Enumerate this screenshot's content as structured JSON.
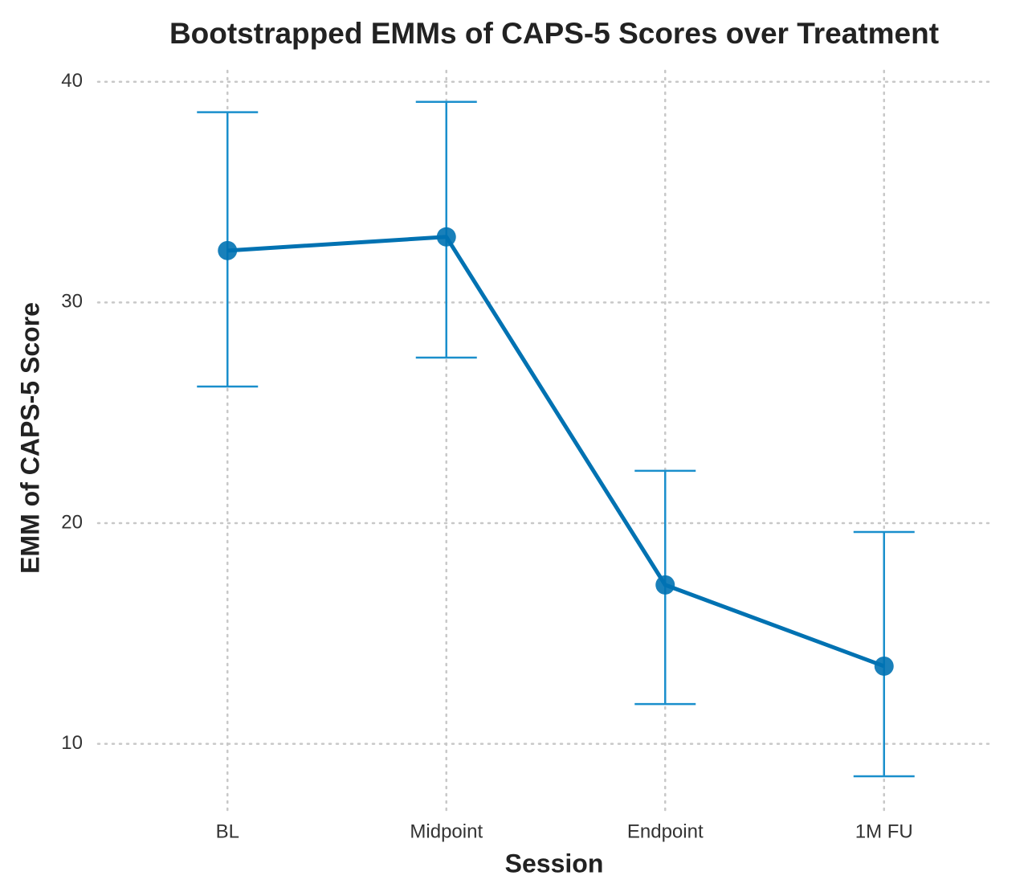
{
  "chart_data": {
    "type": "line",
    "title": "Bootstrapped EMMs of CAPS-5 Scores over Treatment",
    "x_label": "Session",
    "y_label": "EMM of CAPS-5 Score",
    "categories": [
      "BL",
      "Midpoint",
      "Endpoint",
      "1M FU"
    ],
    "series": [
      {
        "color": "#0072b2",
        "error_color": "#1a8fcc",
        "values": [
          32.35,
          32.97,
          17.2,
          13.52
        ],
        "lower": [
          26.19,
          27.5,
          11.8,
          8.53
        ],
        "upper": [
          38.62,
          39.09,
          22.37,
          19.6
        ]
      }
    ],
    "ylim": [
      7,
      40.5
    ],
    "yticks": [
      10,
      20,
      30,
      40
    ],
    "grid": true
  }
}
